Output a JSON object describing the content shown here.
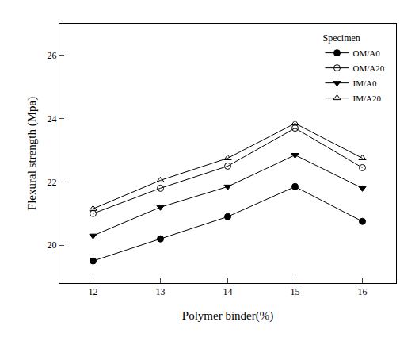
{
  "chart_data": {
    "type": "line",
    "x_label": "Polymer binder(%)",
    "y_label": "Flexural strength (Mpa)",
    "legend_title": "Specimen",
    "legend": "upper right",
    "grid": false,
    "x": [
      12,
      13,
      14,
      15,
      16
    ],
    "xlim": [
      11.5,
      16.5
    ],
    "xticks": [
      12,
      13,
      14,
      15,
      16
    ],
    "ylim": [
      18.8,
      27
    ],
    "yticks": [
      20,
      22,
      24,
      26
    ],
    "series": [
      {
        "name": "OM/A0",
        "color": "#000000",
        "marker": "circle",
        "line_style": "solid",
        "values": [
          19.5,
          20.2,
          20.9,
          21.85,
          20.75
        ]
      },
      {
        "name": "OM/A20",
        "color": "#000000",
        "marker": "circle-open",
        "line_style": "solid",
        "values": [
          21.0,
          21.8,
          22.5,
          23.7,
          22.45
        ]
      },
      {
        "name": "IM/A0",
        "color": "#000000",
        "marker": "triangle-down",
        "line_style": "solid",
        "values": [
          20.3,
          21.2,
          21.85,
          22.85,
          21.8
        ]
      },
      {
        "name": "IM/A20",
        "color": "#000000",
        "marker": "triangle-up-open",
        "line_style": "solid",
        "values": [
          21.15,
          22.05,
          22.75,
          23.85,
          22.75
        ]
      }
    ]
  }
}
